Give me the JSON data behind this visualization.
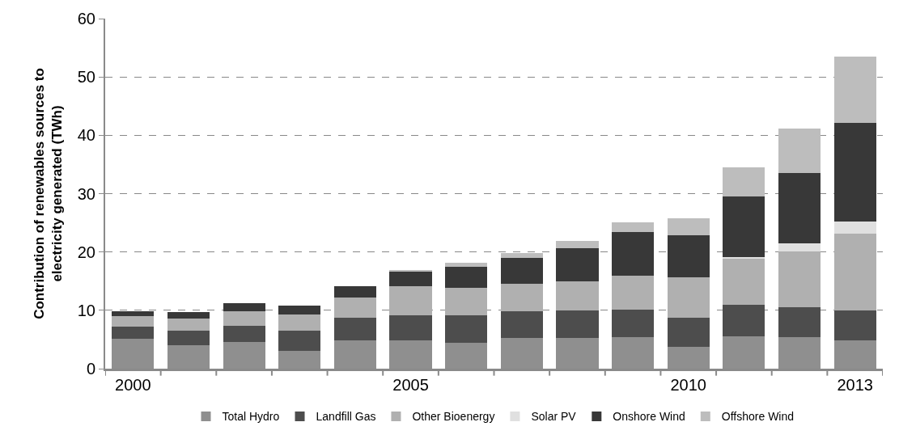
{
  "chart_data": {
    "type": "bar",
    "stacked": true,
    "ylabel": "Contribution of renewables sources to\nelectricity generated (TWh)",
    "categories": [
      "2000",
      null,
      null,
      null,
      null,
      "2005",
      null,
      null,
      null,
      null,
      "2010",
      null,
      null,
      "2013"
    ],
    "series": [
      {
        "name": "Total Hydro",
        "color": "#8f8f8f",
        "values": [
          5.1,
          4.0,
          4.6,
          3.0,
          4.8,
          4.8,
          4.5,
          5.2,
          5.2,
          5.4,
          3.7,
          5.6,
          5.4,
          4.8
        ]
      },
      {
        "name": "Landfill Gas",
        "color": "#4d4d4d",
        "values": [
          2.1,
          2.5,
          2.7,
          3.5,
          3.9,
          4.4,
          4.6,
          4.7,
          4.8,
          4.7,
          5.0,
          5.3,
          5.1,
          5.2
        ]
      },
      {
        "name": "Other Bioenergy",
        "color": "#b0b0b0",
        "values": [
          1.8,
          2.1,
          2.6,
          2.8,
          3.5,
          4.9,
          4.8,
          4.6,
          4.9,
          5.8,
          7.0,
          8.0,
          9.6,
          13.2
        ]
      },
      {
        "name": "Solar PV",
        "color": "#e0e0e0",
        "values": [
          0,
          0,
          0,
          0,
          0,
          0,
          0,
          0,
          0,
          null,
          0,
          0.2,
          1.4,
          2.0
        ]
      },
      {
        "name": "Onshore Wind",
        "color": "#383838",
        "values": [
          0.9,
          1.1,
          1.3,
          1.5,
          1.9,
          2.5,
          3.6,
          4.5,
          5.7,
          7.5,
          7.2,
          10.4,
          12.1,
          16.9
        ]
      },
      {
        "name": "Offshore Wind",
        "color": "#bdbdbd",
        "values": [
          0,
          0,
          0,
          0,
          0,
          0.3,
          0.6,
          0.8,
          1.3,
          1.7,
          2.9,
          5.0,
          7.5,
          11.4
        ]
      }
    ],
    "ylim": [
      0,
      60
    ],
    "yticks": [
      0,
      10,
      20,
      30,
      40,
      50,
      60
    ],
    "grid": "y",
    "legend": "bottom"
  }
}
